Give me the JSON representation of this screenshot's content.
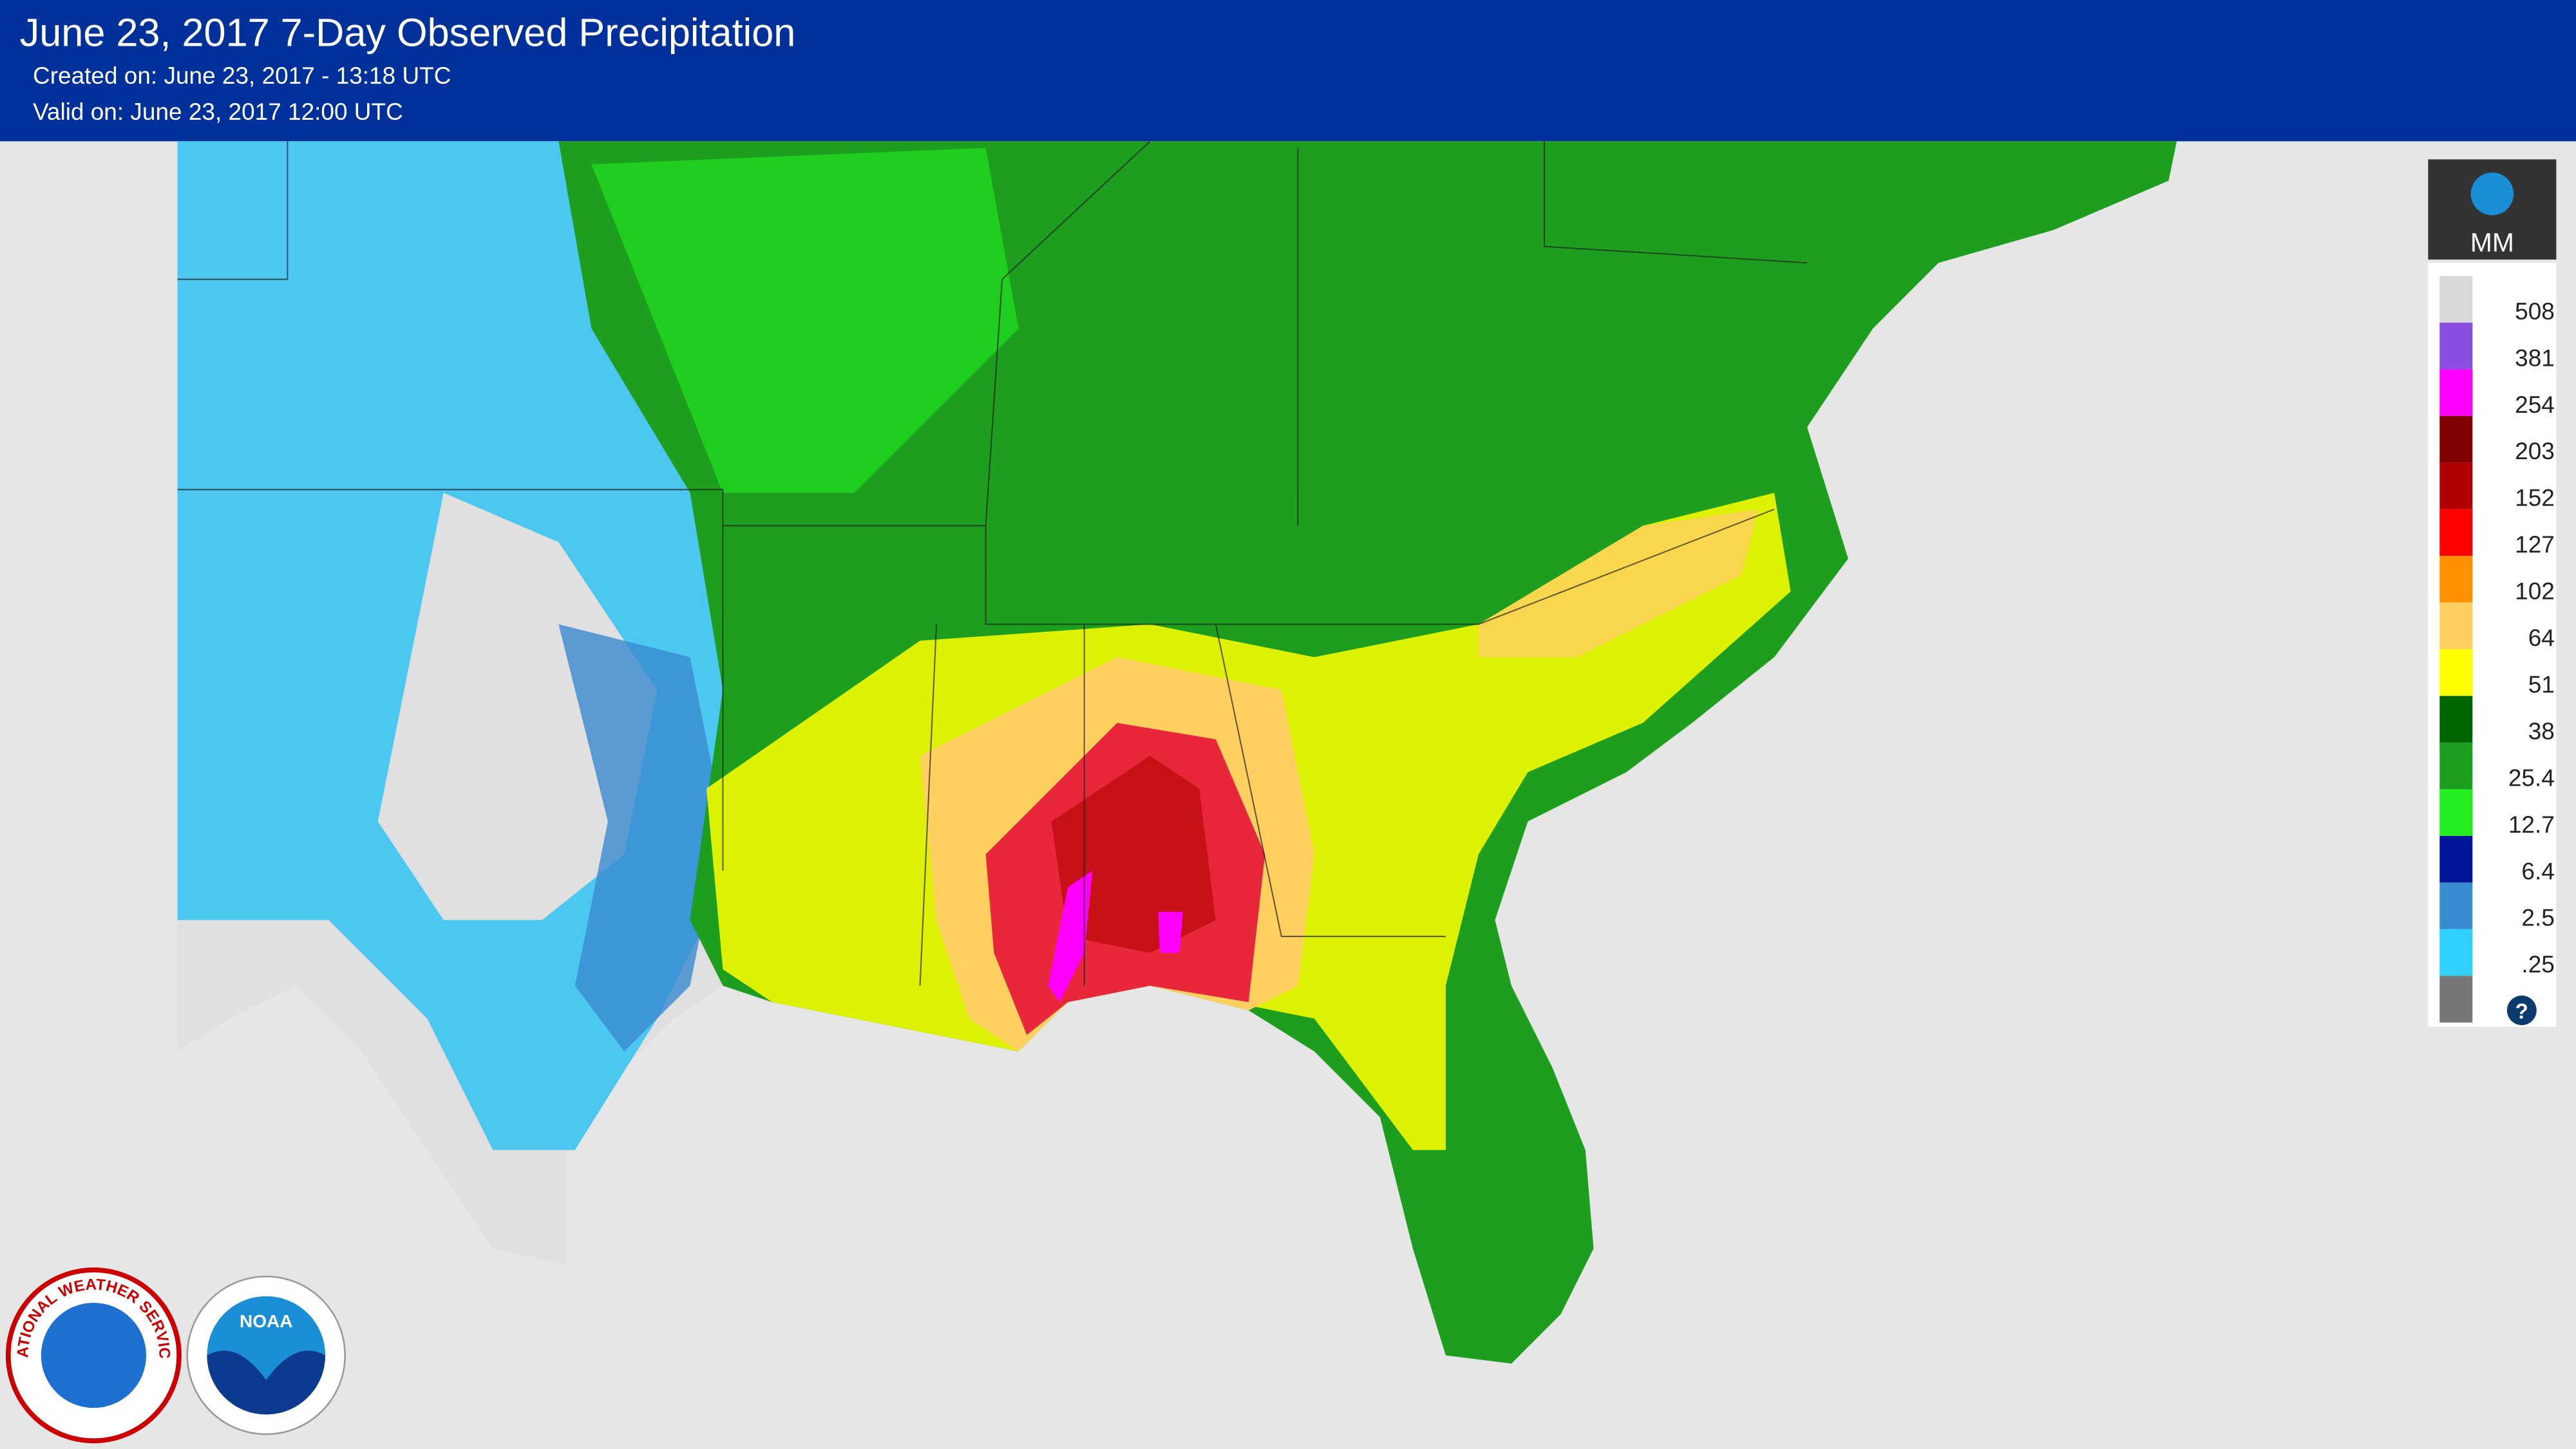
{
  "header": {
    "title": "June 23, 2017 7-Day Observed Precipitation",
    "created": "Created on: June 23, 2017 - 13:18 UTC",
    "valid": "Valid on: June 23, 2017 12:00 UTC"
  },
  "legend": {
    "unit": "MM",
    "items": [
      {
        "label": "508",
        "color": "#d9d9d9"
      },
      {
        "label": "381",
        "color": "#8a4fe0"
      },
      {
        "label": "254",
        "color": "#ff00ff"
      },
      {
        "label": "203",
        "color": "#800000"
      },
      {
        "label": "152",
        "color": "#b00000"
      },
      {
        "label": "127",
        "color": "#ff0000"
      },
      {
        "label": "102",
        "color": "#ff9000"
      },
      {
        "label": "64",
        "color": "#ffd060"
      },
      {
        "label": "51",
        "color": "#ffff00"
      },
      {
        "label": "38",
        "color": "#006400"
      },
      {
        "label": "25.4",
        "color": "#1e9e1e"
      },
      {
        "label": "12.7",
        "color": "#22ee22"
      },
      {
        "label": "6.4",
        "color": "#00169a"
      },
      {
        "label": "2.5",
        "color": "#3a8ad0"
      },
      {
        "label": ".25",
        "color": "#30d0ff"
      }
    ],
    "help": "?"
  },
  "logos": {
    "nws": "NATIONAL WEATHER SERVICE",
    "noaa": "NOAA"
  }
}
